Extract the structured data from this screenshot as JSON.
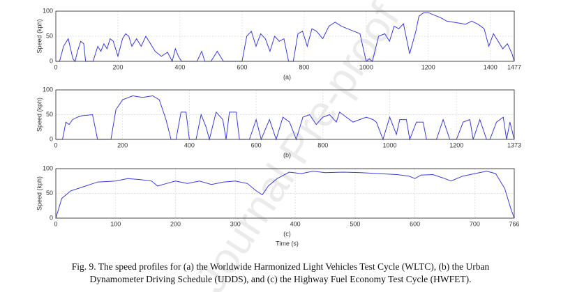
{
  "watermark": "Journal Pre-proof",
  "caption": [
    "Fig. 9. The speed profiles for (a) the Worldwide Harmonized Light Vehicles Test Cycle (WLTC), (b) the Urban",
    "Dynamometer Driving Schedule (UDDS), and (c) the Highway Fuel Economy Test Cycle (HWFET)."
  ],
  "chart_data": [
    {
      "type": "line",
      "ylabel": "Speed (kph)",
      "label": "(a)",
      "color": "#3b3bd6",
      "grid": true,
      "xlim": [
        0,
        1477
      ],
      "ylim": [
        0,
        100
      ],
      "xticks": [
        0,
        200,
        400,
        600,
        800,
        1000,
        1200,
        1400,
        1477
      ],
      "yticks": [
        0,
        50,
        100
      ],
      "x": [
        0,
        12,
        25,
        40,
        55,
        62,
        70,
        80,
        90,
        96,
        120,
        135,
        145,
        155,
        165,
        175,
        185,
        200,
        215,
        225,
        235,
        245,
        260,
        275,
        290,
        305,
        320,
        340,
        360,
        375,
        385,
        395,
        405,
        420,
        440,
        455,
        470,
        480,
        500,
        520,
        540,
        560,
        580,
        600,
        615,
        630,
        645,
        660,
        675,
        690,
        705,
        720,
        735,
        750,
        765,
        780,
        795,
        810,
        825,
        840,
        860,
        880,
        900,
        920,
        940,
        960,
        980,
        1000,
        1010,
        1020,
        1040,
        1060,
        1075,
        1090,
        1105,
        1120,
        1140,
        1160,
        1170,
        1185,
        1200,
        1220,
        1240,
        1260,
        1280,
        1300,
        1320,
        1340,
        1360,
        1380,
        1395,
        1410,
        1425,
        1440,
        1455,
        1470,
        1477
      ],
      "values": [
        0,
        0,
        30,
        45,
        5,
        0,
        20,
        40,
        35,
        0,
        0,
        30,
        20,
        35,
        25,
        45,
        40,
        10,
        45,
        55,
        50,
        30,
        45,
        30,
        50,
        35,
        20,
        10,
        18,
        0,
        25,
        10,
        0,
        0,
        0,
        0,
        20,
        0,
        0,
        20,
        0,
        0,
        0,
        0,
        50,
        60,
        30,
        55,
        45,
        20,
        50,
        40,
        45,
        0,
        0,
        55,
        60,
        30,
        65,
        60,
        45,
        70,
        78,
        70,
        65,
        60,
        55,
        0,
        5,
        0,
        50,
        55,
        40,
        70,
        65,
        75,
        15,
        60,
        90,
        97,
        97,
        92,
        87,
        80,
        78,
        76,
        74,
        80,
        74,
        65,
        30,
        55,
        40,
        25,
        35,
        15,
        0
      ]
    },
    {
      "type": "line",
      "ylabel": "Speed (kph)",
      "label": "(b)",
      "color": "#3b3bd6",
      "grid": true,
      "xlim": [
        0,
        1373
      ],
      "ylim": [
        0,
        100
      ],
      "xticks": [
        0,
        200,
        400,
        600,
        800,
        1000,
        1200,
        1373
      ],
      "yticks": [
        0,
        50,
        100
      ],
      "x": [
        0,
        20,
        30,
        40,
        50,
        65,
        80,
        110,
        125,
        165,
        180,
        200,
        230,
        260,
        290,
        310,
        330,
        345,
        360,
        375,
        390,
        400,
        420,
        435,
        450,
        460,
        480,
        500,
        510,
        520,
        540,
        550,
        580,
        600,
        615,
        640,
        660,
        680,
        700,
        720,
        740,
        760,
        780,
        800,
        820,
        840,
        850,
        870,
        890,
        910,
        930,
        950,
        960,
        980,
        1000,
        1020,
        1030,
        1050,
        1060,
        1080,
        1100,
        1110,
        1140,
        1160,
        1180,
        1200,
        1220,
        1240,
        1250,
        1270,
        1290,
        1300,
        1320,
        1340,
        1350,
        1360,
        1373
      ],
      "values": [
        0,
        0,
        35,
        30,
        40,
        45,
        48,
        50,
        0,
        0,
        60,
        80,
        88,
        85,
        88,
        80,
        40,
        0,
        0,
        55,
        55,
        0,
        0,
        50,
        25,
        0,
        55,
        40,
        0,
        55,
        55,
        0,
        0,
        40,
        0,
        40,
        0,
        45,
        35,
        0,
        45,
        50,
        30,
        45,
        50,
        35,
        55,
        45,
        35,
        40,
        45,
        40,
        35,
        0,
        45,
        10,
        40,
        40,
        0,
        35,
        35,
        0,
        0,
        40,
        0,
        0,
        35,
        40,
        0,
        40,
        0,
        0,
        35,
        45,
        0,
        35,
        0
      ]
    },
    {
      "type": "line",
      "ylabel": "Speed (kph)",
      "label": "(c)",
      "xlabel": "Time (s)",
      "color": "#3b3bd6",
      "grid": true,
      "xlim": [
        0,
        766
      ],
      "ylim": [
        0,
        100
      ],
      "xticks": [
        0,
        100,
        200,
        300,
        400,
        500,
        600,
        700,
        766
      ],
      "yticks": [
        0,
        50,
        100
      ],
      "x": [
        0,
        10,
        25,
        50,
        70,
        100,
        120,
        140,
        160,
        170,
        185,
        200,
        220,
        240,
        260,
        280,
        300,
        320,
        335,
        345,
        355,
        370,
        390,
        410,
        430,
        450,
        480,
        510,
        540,
        570,
        590,
        600,
        610,
        630,
        650,
        660,
        680,
        700,
        720,
        735,
        750,
        760,
        766
      ],
      "values": [
        0,
        40,
        55,
        65,
        73,
        75,
        80,
        78,
        75,
        65,
        70,
        75,
        70,
        75,
        68,
        73,
        75,
        70,
        55,
        47,
        65,
        80,
        93,
        90,
        95,
        92,
        93,
        92,
        90,
        88,
        85,
        80,
        87,
        88,
        80,
        75,
        85,
        90,
        95,
        90,
        60,
        20,
        0
      ]
    }
  ]
}
